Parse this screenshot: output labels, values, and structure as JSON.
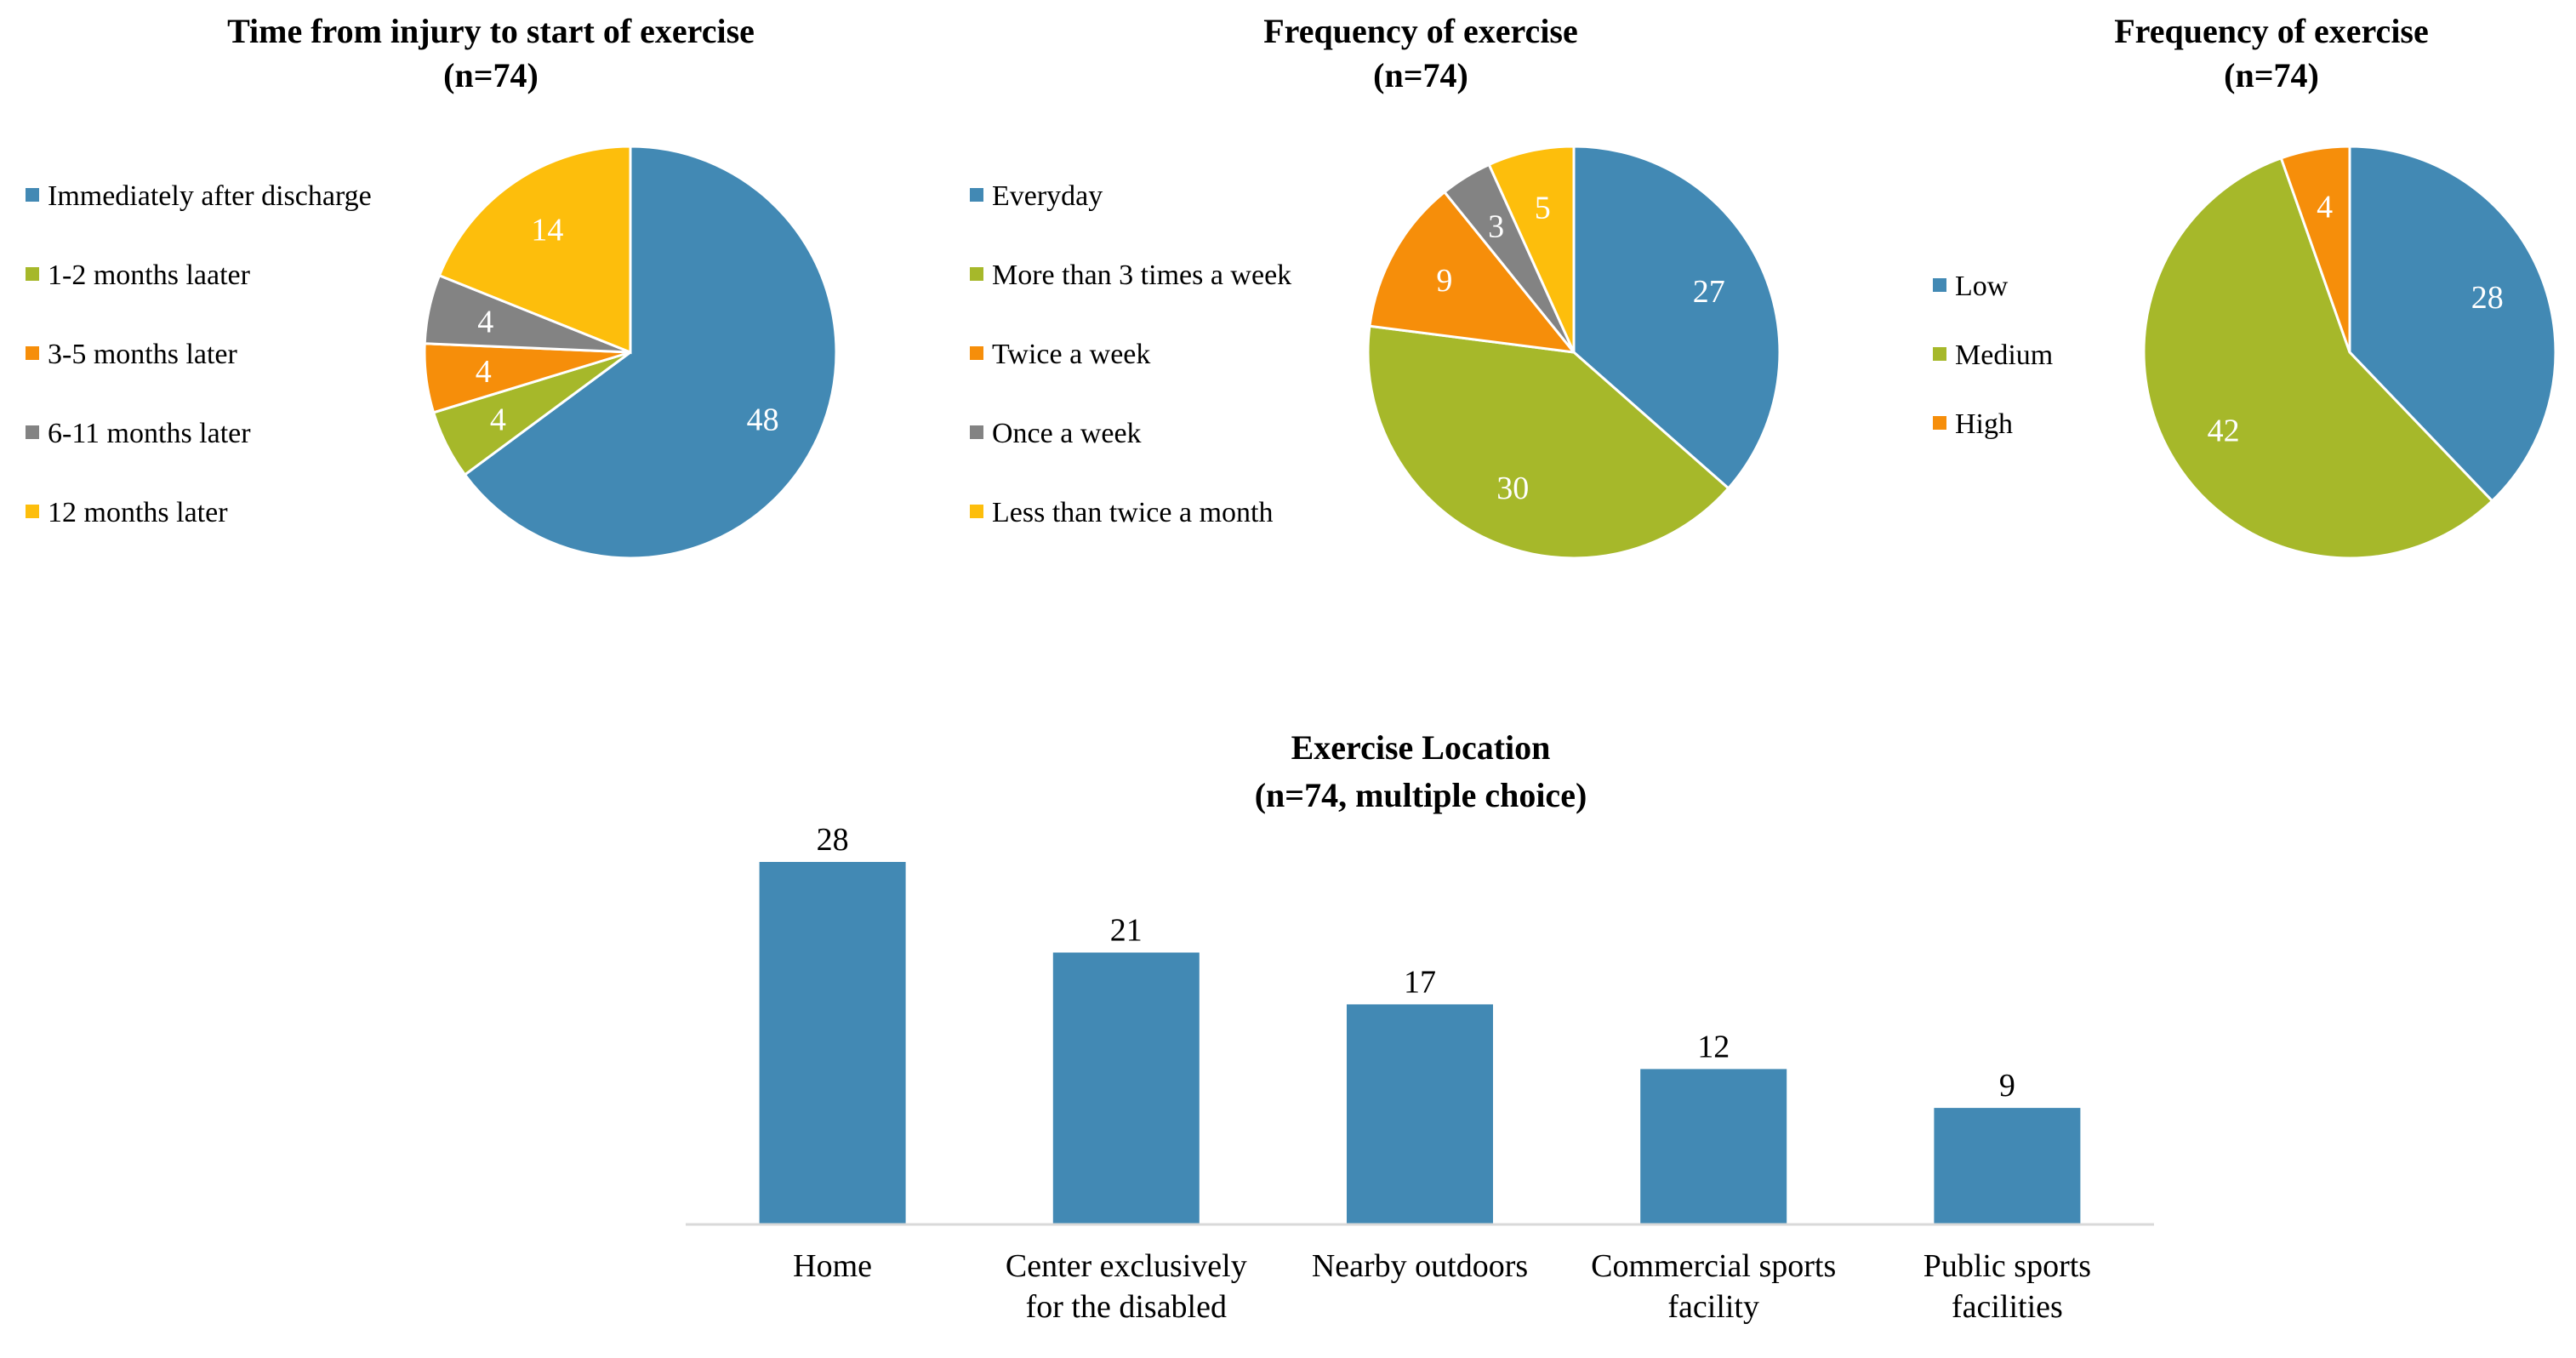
{
  "colors": {
    "blue": "#4289B4",
    "green": "#A6B82A",
    "orange": "#F68E0A",
    "gray": "#838383",
    "yellow": "#FDBE0C",
    "axis": "#D9D9D9"
  },
  "chart_data": [
    {
      "type": "pie",
      "title": "Time from injury to start of exercise",
      "subtitle": "(n=74)",
      "categories": [
        "Immediately after discharge",
        "1-2 months laater",
        "3-5 months later",
        "6-11 months later",
        "12 months later"
      ],
      "values": [
        48,
        4,
        4,
        4,
        14
      ],
      "colors": [
        "#4289B4",
        "#A6B82A",
        "#F68E0A",
        "#838383",
        "#FDBE0C"
      ],
      "legend": "left"
    },
    {
      "type": "pie",
      "title": "Frequency of exercise",
      "subtitle": "(n=74)",
      "categories": [
        "Everyday",
        "More than 3 times a week",
        "Twice a week",
        "Once a week",
        "Less than twice a month"
      ],
      "values": [
        27,
        30,
        9,
        3,
        5
      ],
      "colors": [
        "#4289B4",
        "#A6B82A",
        "#F68E0A",
        "#838383",
        "#FDBE0C"
      ],
      "legend": "left"
    },
    {
      "type": "pie",
      "title": "Frequency of exercise",
      "subtitle": "(n=74)",
      "categories": [
        "Low",
        "Medium",
        "High"
      ],
      "values": [
        28,
        42,
        4
      ],
      "colors": [
        "#4289B4",
        "#A6B82A",
        "#F68E0A"
      ],
      "legend": "left"
    },
    {
      "type": "bar",
      "title": "Exercise Location",
      "subtitle": "(n=74, multiple choice)",
      "categories": [
        [
          "Home"
        ],
        [
          "Center exclusively",
          "for the disabled"
        ],
        [
          "Nearby outdoors"
        ],
        [
          "Commercial sports",
          "facility"
        ],
        [
          "Public sports",
          "facilities"
        ]
      ],
      "values": [
        28,
        21,
        17,
        12,
        9
      ],
      "ylim": [
        0,
        28
      ],
      "color": "#4289B4",
      "xlabel": "",
      "ylabel": ""
    }
  ]
}
